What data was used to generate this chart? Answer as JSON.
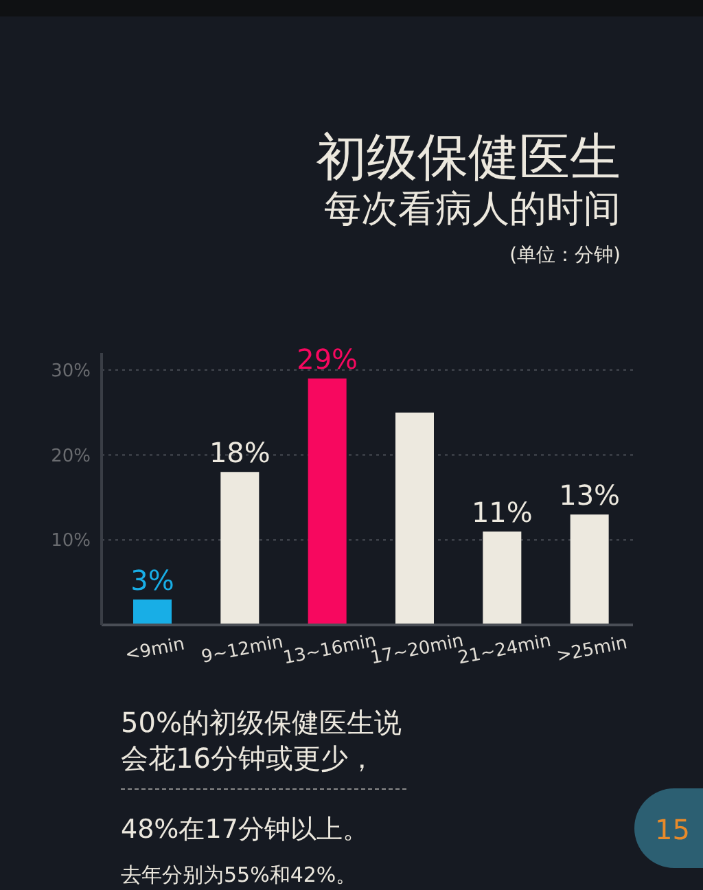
{
  "chart_data": {
    "type": "bar",
    "title": "初级保健医生",
    "subtitle": "每次看病人的时间",
    "annotations": [
      "(单位：分钟)",
      "50%的初级保健医生说会花16分钟或更少，",
      "48%在17分钟以上。",
      "去年分别为55%和42%。",
      "15"
    ],
    "categories": [
      "<9min",
      "9~12min",
      "13~16min",
      "17~20min",
      "21~24min",
      ">25min"
    ],
    "values": [
      3,
      18,
      29,
      25,
      11,
      13
    ],
    "colors": [
      "#18aee6",
      "#ede9df",
      "#f7085f",
      "#ede9df",
      "#ede9df",
      "#ede9df"
    ],
    "value_labels": [
      "3%",
      "18%",
      "29%",
      null,
      "11%",
      "13%"
    ],
    "ylim": [
      0,
      32
    ],
    "yticks": [
      {
        "value": 10,
        "label": "10%"
      },
      {
        "value": 20,
        "label": "20%"
      },
      {
        "value": 30,
        "label": "30%"
      }
    ],
    "grid": "y"
  }
}
